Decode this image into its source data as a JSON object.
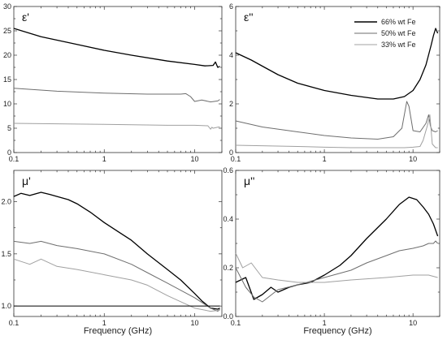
{
  "chart_data": [
    {
      "type": "line",
      "panel": "top-left",
      "title": "ε'",
      "xscale": "log",
      "xlim": [
        0.1,
        20
      ],
      "ylim": [
        0,
        30
      ],
      "xticks": [
        "0.1",
        "1",
        "10"
      ],
      "yticks": [
        "0",
        "5",
        "10",
        "15",
        "20",
        "25",
        "30"
      ],
      "xlabel": "",
      "series": [
        {
          "color": "#000000",
          "x": [
            0.1,
            0.2,
            0.5,
            1,
            2,
            5,
            10,
            13,
            16,
            17,
            18,
            19
          ],
          "y": [
            25.5,
            23.8,
            22.2,
            21,
            20,
            18.8,
            18.1,
            17.8,
            17.9,
            18.6,
            17.5,
            17.7
          ]
        },
        {
          "color": "#6e6e6e",
          "x": [
            0.1,
            0.3,
            1,
            3,
            7,
            8,
            9,
            10,
            12,
            15,
            18,
            19
          ],
          "y": [
            13.2,
            12.6,
            12.2,
            12.0,
            12.0,
            12.1,
            11.5,
            10.5,
            10.8,
            10.4,
            10.6,
            10.9
          ]
        },
        {
          "color": "#a0a0a0",
          "x": [
            0.1,
            1,
            5,
            10,
            14,
            15,
            15.5,
            16,
            18,
            19
          ],
          "y": [
            6.0,
            5.8,
            5.6,
            5.6,
            5.5,
            4.8,
            5.2,
            5.0,
            5.2,
            5.3
          ]
        }
      ]
    },
    {
      "type": "line",
      "panel": "top-right",
      "title": "ε''",
      "xscale": "log",
      "xlim": [
        0.1,
        20
      ],
      "ylim": [
        0,
        6
      ],
      "xticks": [
        "0.1",
        "1",
        "10"
      ],
      "yticks": [
        "0",
        "2",
        "4",
        "6"
      ],
      "xlabel": "",
      "legend": {
        "position": "top-right",
        "entries": [
          "66% wt Fe",
          "50% wt Fe",
          "33% wt Fe"
        ]
      },
      "series": [
        {
          "name": "66% wt Fe",
          "color": "#000000",
          "x": [
            0.1,
            0.15,
            0.2,
            0.3,
            0.5,
            1,
            2,
            4,
            6,
            8,
            10,
            12,
            14,
            16,
            17,
            18,
            19
          ],
          "y": [
            4.1,
            3.8,
            3.55,
            3.2,
            2.85,
            2.55,
            2.35,
            2.2,
            2.2,
            2.3,
            2.55,
            3.0,
            3.6,
            4.4,
            4.8,
            5.1,
            4.9
          ]
        },
        {
          "name": "50% wt Fe",
          "color": "#6e6e6e",
          "x": [
            0.1,
            0.2,
            0.5,
            1,
            2,
            4,
            6,
            7.5,
            8.5,
            9,
            10,
            12,
            14,
            15,
            15.7,
            16.5,
            18,
            19
          ],
          "y": [
            1.3,
            1.05,
            0.85,
            0.7,
            0.6,
            0.55,
            0.65,
            1.0,
            2.1,
            1.9,
            0.9,
            0.85,
            1.2,
            1.55,
            1.1,
            0.9,
            0.85,
            0.9
          ]
        },
        {
          "name": "33% wt Fe",
          "color": "#a0a0a0",
          "x": [
            0.1,
            0.5,
            1,
            2,
            5,
            8,
            10,
            12,
            13,
            14.5,
            15.5,
            16.5,
            18,
            19
          ],
          "y": [
            0.3,
            0.25,
            0.22,
            0.2,
            0.2,
            0.2,
            0.22,
            0.25,
            0.5,
            1.1,
            1.55,
            0.35,
            0.2,
            0.2
          ]
        }
      ]
    },
    {
      "type": "line",
      "panel": "bottom-left",
      "title": "μ'",
      "xscale": "log",
      "xlim": [
        0.1,
        20
      ],
      "ylim": [
        0.9,
        2.3
      ],
      "xticks": [
        "0.1",
        "1",
        "10"
      ],
      "yticks": [
        "1.0",
        "1.5",
        "2.0"
      ],
      "xlabel": "Frequency (GHz)",
      "series": [
        {
          "color": "#000000",
          "x": [
            0.1,
            0.12,
            0.15,
            0.2,
            0.25,
            0.3,
            0.4,
            0.5,
            0.7,
            1,
            1.5,
            2,
            3,
            5,
            7,
            10,
            12,
            15,
            18,
            19
          ],
          "y": [
            2.05,
            2.08,
            2.06,
            2.09,
            2.07,
            2.05,
            2.02,
            1.98,
            1.9,
            1.8,
            1.7,
            1.63,
            1.5,
            1.35,
            1.25,
            1.12,
            1.05,
            0.98,
            0.97,
            0.98
          ]
        },
        {
          "color": "#6e6e6e",
          "x": [
            0.1,
            0.15,
            0.2,
            0.3,
            0.5,
            1,
            2,
            3,
            5,
            10,
            15,
            18,
            19
          ],
          "y": [
            1.62,
            1.6,
            1.62,
            1.58,
            1.55,
            1.5,
            1.4,
            1.32,
            1.22,
            1.08,
            0.98,
            0.95,
            0.97
          ]
        },
        {
          "color": "#a0a0a0",
          "x": [
            0.1,
            0.15,
            0.2,
            0.3,
            0.5,
            1,
            2,
            3,
            5,
            10,
            15,
            19
          ],
          "y": [
            1.45,
            1.4,
            1.45,
            1.38,
            1.35,
            1.3,
            1.25,
            1.2,
            1.1,
            0.98,
            0.95,
            0.96
          ]
        },
        {
          "color": "#000000",
          "x": [
            0.1,
            19
          ],
          "y": [
            1.0,
            1.0
          ]
        }
      ]
    },
    {
      "type": "line",
      "panel": "bottom-right",
      "title": "μ''",
      "xscale": "log",
      "xlim": [
        0.1,
        20
      ],
      "ylim": [
        0,
        0.6
      ],
      "xticks": [
        "0.1",
        "1",
        "10"
      ],
      "yticks": [
        "0.0",
        "0.2",
        "0.4",
        "0.6"
      ],
      "xlabel": "Frequency (GHz)",
      "series": [
        {
          "color": "#000000",
          "x": [
            0.1,
            0.13,
            0.16,
            0.2,
            0.25,
            0.3,
            0.4,
            0.5,
            0.7,
            1,
            1.5,
            2,
            3,
            5,
            7,
            9,
            11,
            13,
            15,
            17,
            19
          ],
          "y": [
            0.14,
            0.16,
            0.07,
            0.09,
            0.12,
            0.1,
            0.12,
            0.13,
            0.14,
            0.17,
            0.21,
            0.25,
            0.32,
            0.4,
            0.46,
            0.49,
            0.48,
            0.45,
            0.42,
            0.38,
            0.33
          ]
        },
        {
          "color": "#6e6e6e",
          "x": [
            0.1,
            0.13,
            0.16,
            0.2,
            0.3,
            0.5,
            1,
            2,
            3,
            5,
            7,
            10,
            13,
            15,
            17,
            18,
            19
          ],
          "y": [
            0.2,
            0.12,
            0.08,
            0.06,
            0.11,
            0.13,
            0.16,
            0.19,
            0.22,
            0.25,
            0.27,
            0.28,
            0.29,
            0.3,
            0.3,
            0.31,
            0.3
          ]
        },
        {
          "color": "#a0a0a0",
          "x": [
            0.1,
            0.12,
            0.15,
            0.2,
            0.3,
            0.5,
            1,
            2,
            5,
            10,
            15,
            19
          ],
          "y": [
            0.26,
            0.2,
            0.22,
            0.16,
            0.15,
            0.14,
            0.14,
            0.15,
            0.16,
            0.17,
            0.17,
            0.16
          ]
        }
      ]
    }
  ]
}
